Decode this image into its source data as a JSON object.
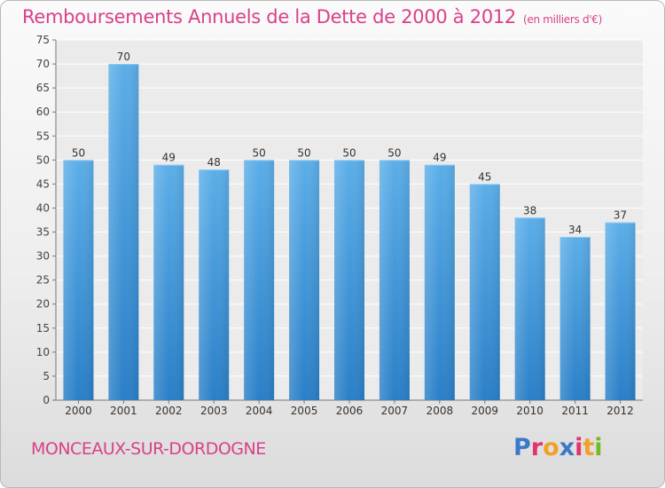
{
  "header": {
    "title": "Remboursements Annuels de la Dette de 2000 à 2012",
    "unit": "(en milliers d'€)"
  },
  "footer": {
    "commune": "MONCEAUX-SUR-DORDOGNE"
  },
  "logo": {
    "letters": [
      "P",
      "r",
      "o",
      "x",
      "i",
      "t",
      "i"
    ],
    "colors": [
      "#3d79c9",
      "#e2336e",
      "#f0a127",
      "#3d79c9",
      "#e2336e",
      "#f0a127",
      "#76b82a"
    ]
  },
  "colors": {
    "bar_top": "#5caee8",
    "bar_bottom": "#2a7fc7",
    "accent": "#d9418a"
  },
  "chart_data": {
    "type": "bar",
    "title": "Remboursements Annuels de la Dette de 2000 à 2012",
    "subtitle": "(en milliers d'€)",
    "categories": [
      "2000",
      "2001",
      "2002",
      "2003",
      "2004",
      "2005",
      "2006",
      "2007",
      "2008",
      "2009",
      "2010",
      "2011",
      "2012"
    ],
    "values": [
      50,
      70,
      49,
      48,
      50,
      50,
      50,
      50,
      49,
      45,
      38,
      34,
      37
    ],
    "ylim": [
      0,
      75
    ],
    "yticks": [
      0,
      5,
      10,
      15,
      20,
      25,
      30,
      35,
      40,
      45,
      50,
      55,
      60,
      65,
      70,
      75
    ],
    "grid": true,
    "data_labels": true
  }
}
